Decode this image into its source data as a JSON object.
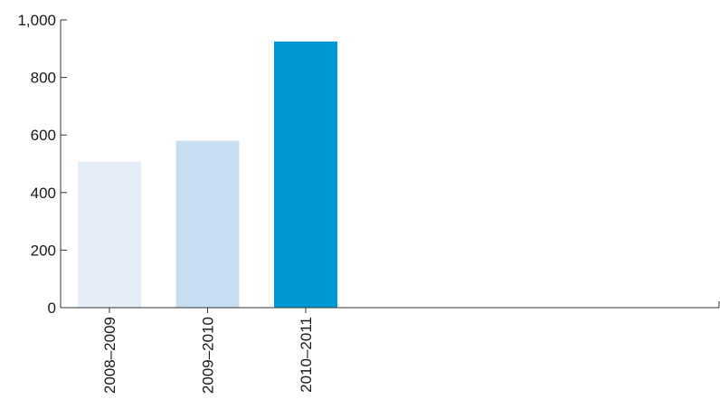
{
  "chart_data": {
    "type": "bar",
    "categories": [
      "2008–2009",
      "2009–2010",
      "2010–2011"
    ],
    "values": [
      507,
      580,
      925
    ],
    "colors": [
      "#e4edf8",
      "#c5def1",
      "#0097d6"
    ],
    "ylim": [
      0,
      1000
    ],
    "yticks": [
      0,
      200,
      400,
      600,
      800,
      1000
    ],
    "ytick_labels": [
      "0",
      "200",
      "400",
      "600",
      "800",
      "1,000"
    ],
    "title": "",
    "xlabel": "",
    "ylabel": "",
    "grid": false,
    "axis_color": "#333333"
  }
}
